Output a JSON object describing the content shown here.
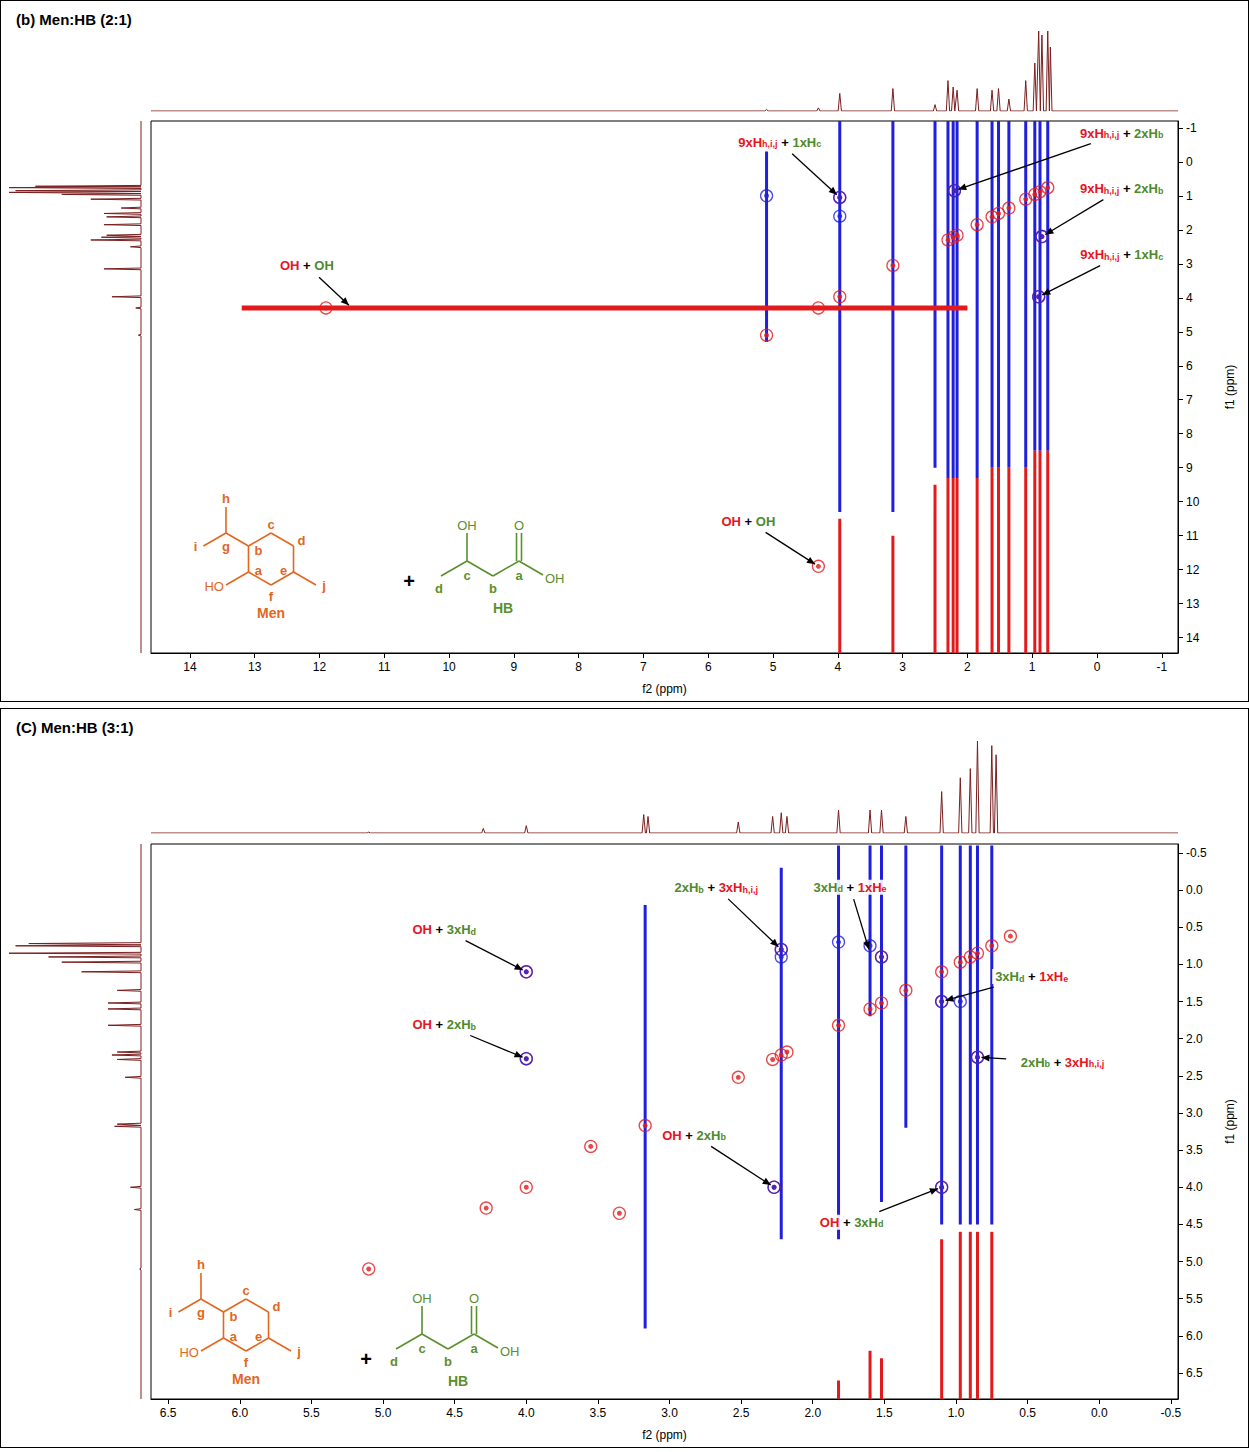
{
  "chart_data": [
    {
      "type": "scatter",
      "title": "(b) Men:HB (2:1)",
      "x_label": "f2 (ppm)",
      "y_label": "f1 (ppm)",
      "xlim": [
        14.6,
        -1.25
      ],
      "ylim": [
        14.45,
        -1.2
      ],
      "xticks": [
        14,
        13,
        12,
        11,
        10,
        9,
        8,
        7,
        6,
        5,
        4,
        3,
        2,
        1,
        0,
        -1
      ],
      "yticks": [
        -1,
        0,
        1,
        2,
        3,
        4,
        5,
        6,
        7,
        8,
        9,
        10,
        11,
        12,
        13,
        14
      ],
      "grid": false,
      "projection": {
        "color": "#7a1f1f",
        "ppm": [
          5.1,
          4.3,
          3.97,
          3.15,
          2.5,
          2.3,
          2.22,
          2.16,
          1.85,
          1.62,
          1.52,
          1.36,
          1.1,
          0.96,
          0.9,
          0.85,
          0.76,
          0.72
        ],
        "intensity": [
          2,
          4,
          22,
          28,
          8,
          38,
          30,
          26,
          28,
          26,
          28,
          15,
          38,
          60,
          100,
          95,
          100,
          80
        ]
      },
      "series": [
        {
          "color": "#e31a1c",
          "x": [
            5.1,
            3.97,
            3.15,
            2.3,
            2.22,
            2.16,
            1.85,
            1.62,
            1.52,
            1.36,
            1.1,
            0.96,
            0.88,
            0.76,
            4.3,
            11.9,
            4.3,
            3.97,
            2.2,
            0.85,
            0.9
          ],
          "y": [
            5.1,
            3.97,
            3.05,
            2.3,
            2.22,
            2.16,
            1.85,
            1.62,
            1.52,
            1.36,
            1.1,
            0.96,
            0.88,
            0.76,
            4.3,
            4.3,
            11.9,
            1.05,
            0.85,
            2.2,
            3.97
          ]
        },
        {
          "color": "#1f1fdd",
          "x": [
            5.1,
            3.97,
            3.97,
            2.2,
            0.85,
            0.9
          ],
          "y": [
            1.0,
            1.05,
            1.6,
            0.85,
            2.2,
            3.97
          ]
        }
      ],
      "streaks": [
        {
          "color": "#1f1fdd",
          "x": [
            5.1,
            3.97,
            3.15,
            2.5,
            2.3,
            2.22,
            2.16,
            1.85,
            1.62,
            1.52,
            1.36,
            1.1,
            0.96,
            0.88,
            0.76
          ],
          "y_from": [
            -0.3,
            -1.2,
            -1.2,
            -1.2,
            -1.2,
            -1.2,
            -1.2,
            -1.2,
            -1.2,
            -1.2,
            -1.2,
            -1.2,
            -1.2,
            -1.2,
            -1.2
          ],
          "y_to": [
            5.3,
            10.3,
            10.3,
            9.0,
            9.3,
            9.3,
            9.3,
            9.3,
            9.0,
            9.0,
            9.0,
            9.0,
            8.5,
            8.5,
            8.5
          ]
        },
        {
          "color": "#e31a1c",
          "x": [
            3.97,
            3.15,
            2.5,
            2.3,
            2.22,
            2.16,
            1.85,
            1.62,
            1.52,
            1.36,
            1.1,
            0.96,
            0.88,
            0.76
          ],
          "y_from": [
            10.5,
            11.0,
            9.5,
            9.3,
            9.3,
            9.3,
            9.3,
            9.0,
            9.0,
            9.0,
            9.0,
            8.5,
            8.5,
            8.5
          ],
          "y_to": [
            14.45,
            14.45,
            14.45,
            14.45,
            14.45,
            14.45,
            14.45,
            14.45,
            14.45,
            14.45,
            14.45,
            14.45,
            14.45,
            14.45
          ]
        }
      ],
      "ridges": [
        {
          "color": "#e31a1c",
          "y": [
            4.3
          ],
          "x_from": [
            13.2
          ],
          "x_to": [
            2.0
          ]
        }
      ],
      "annotations": [
        {
          "x": 3.97,
          "y": 1.05,
          "text": [
            {
              "text": "9xH",
              "sub": "h,i,j",
              "color": "#e8141e"
            },
            {
              "text": " + ",
              "color": "#000000"
            },
            {
              "text": "1xH",
              "sub": "c",
              "color": "#4f8a2b"
            }
          ]
        },
        {
          "x": 2.2,
          "y": 0.85,
          "text": [
            {
              "text": "9xH",
              "sub": "h,i,j",
              "color": "#e8141e"
            },
            {
              "text": " + ",
              "color": "#000000"
            },
            {
              "text": "2xH",
              "sub": "b",
              "color": "#4f8a2b"
            }
          ]
        },
        {
          "x": 0.85,
          "y": 2.2,
          "text": [
            {
              "text": "9xH",
              "sub": "h,i,j",
              "color": "#e8141e"
            },
            {
              "text": " + ",
              "color": "#000000"
            },
            {
              "text": "2xH",
              "sub": "b",
              "color": "#4f8a2b"
            }
          ]
        },
        {
          "x": 0.9,
          "y": 3.97,
          "text": [
            {
              "text": "9xH",
              "sub": "h,i,j",
              "color": "#e8141e"
            },
            {
              "text": " + ",
              "color": "#000000"
            },
            {
              "text": "1xH",
              "sub": "c",
              "color": "#4f8a2b"
            }
          ]
        },
        {
          "x": 11.5,
          "y": 4.3,
          "text": [
            {
              "text": "OH",
              "color": "#e8141e"
            },
            {
              "text": " + ",
              "color": "#000000"
            },
            {
              "text": "OH",
              "color": "#4f8a2b"
            }
          ]
        },
        {
          "x": 4.3,
          "y": 11.9,
          "text": [
            {
              "text": "OH",
              "color": "#e8141e"
            },
            {
              "text": " + ",
              "color": "#000000"
            },
            {
              "text": "OH",
              "color": "#4f8a2b"
            }
          ]
        }
      ],
      "molecules": [
        {
          "name": "Men",
          "color": "#e2661e",
          "atom_labels": [
            "h",
            "i",
            "g",
            "b",
            "c",
            "d",
            "e",
            "j",
            "f",
            "a"
          ],
          "groups": [
            "HO"
          ]
        },
        {
          "name": "HB",
          "color": "#5a8f2e",
          "atom_labels": [
            "d",
            "c",
            "b",
            "a"
          ],
          "groups": [
            "OH",
            "O",
            "OH"
          ]
        }
      ],
      "joiner": "+"
    },
    {
      "type": "scatter",
      "title": "(C) Men:HB (3:1)",
      "x_label": "f2 (ppm)",
      "y_label": "f1 (ppm)",
      "xlim": [
        6.62,
        -0.55
      ],
      "ylim": [
        6.85,
        -0.62
      ],
      "xticks": [
        6.5,
        {
          "value": 6,
          "label": "6.0"
        },
        5.5,
        {
          "value": 5,
          "label": "5.0"
        },
        4.5,
        {
          "value": 4,
          "label": "4.0"
        },
        3.5,
        {
          "value": 3,
          "label": "3.0"
        },
        2.5,
        {
          "value": 2,
          "label": "2.0"
        },
        1.5,
        {
          "value": 1,
          "label": "1.0"
        },
        0.5,
        {
          "value": 0,
          "label": "0.0"
        },
        -0.5
      ],
      "yticks": [
        -0.5,
        {
          "value": 0,
          "label": "0.0"
        },
        0.5,
        {
          "value": 1,
          "label": "1.0"
        },
        1.5,
        {
          "value": 2,
          "label": "2.0"
        },
        2.5,
        {
          "value": 3,
          "label": "3.0"
        },
        3.5,
        {
          "value": 4,
          "label": "4.0"
        },
        4.5,
        {
          "value": 5,
          "label": "5.0"
        },
        5.5,
        {
          "value": 6,
          "label": "6.0"
        },
        6.5
      ],
      "grid": false,
      "projection": {
        "color": "#7a1f1f",
        "ppm": [
          5.1,
          4.3,
          4.0,
          3.18,
          3.15,
          2.52,
          2.28,
          2.22,
          2.18,
          1.82,
          1.6,
          1.52,
          1.35,
          1.1,
          0.97,
          0.9,
          0.85,
          0.75,
          0.72
        ],
        "intensity": [
          1,
          5,
          8,
          20,
          18,
          12,
          18,
          22,
          18,
          25,
          25,
          25,
          18,
          45,
          60,
          70,
          100,
          95,
          85
        ]
      },
      "series": [
        {
          "color": "#e31a1c",
          "x": [
            5.1,
            4.28,
            4.0,
            3.17,
            2.52,
            2.28,
            2.22,
            2.18,
            1.82,
            1.6,
            1.52,
            1.35,
            1.1,
            0.97,
            0.9,
            0.85,
            0.75,
            0.62,
            3.55,
            3.35,
            4.0,
            4.0,
            2.27,
            1.1,
            2.22,
            1.52,
            1.1,
            0.85
          ],
          "y": [
            5.1,
            4.28,
            4.0,
            3.17,
            2.52,
            2.28,
            2.22,
            2.18,
            1.82,
            1.6,
            1.52,
            1.35,
            1.1,
            0.97,
            0.9,
            0.85,
            0.75,
            0.62,
            3.45,
            4.35,
            1.1,
            2.27,
            4.0,
            4.0,
            0.8,
            0.9,
            1.5,
            2.25
          ]
        },
        {
          "color": "#1f1fdd",
          "x": [
            4.0,
            4.0,
            2.27,
            1.1,
            2.22,
            2.22,
            1.6,
            1.52,
            1.1,
            0.85,
            0.97,
            1.82
          ],
          "y": [
            1.1,
            2.27,
            4.0,
            4.0,
            0.8,
            0.9,
            0.75,
            0.9,
            1.5,
            2.25,
            1.5,
            0.7
          ]
        }
      ],
      "streaks": [
        {
          "color": "#1f1fdd",
          "x": [
            3.17,
            2.22,
            1.82,
            1.6,
            1.52,
            1.35,
            1.1,
            0.97,
            0.9,
            0.85,
            0.75
          ],
          "y_from": [
            0.2,
            -0.3,
            -0.6,
            -0.6,
            -0.6,
            -0.6,
            -0.6,
            -0.6,
            -0.6,
            -0.6,
            -0.6
          ],
          "y_to": [
            5.9,
            4.7,
            4.7,
            1.7,
            4.2,
            3.2,
            4.5,
            4.5,
            4.5,
            4.5,
            4.5
          ]
        },
        {
          "color": "#e31a1c",
          "x": [
            1.82,
            1.6,
            1.52,
            1.1,
            0.97,
            0.9,
            0.85,
            0.75
          ],
          "y_from": [
            6.6,
            6.2,
            6.3,
            4.7,
            4.6,
            4.6,
            4.6,
            4.6
          ],
          "y_to": [
            6.85,
            6.85,
            6.85,
            6.85,
            6.85,
            6.85,
            6.85,
            6.85
          ]
        }
      ],
      "annotations": [
        {
          "x": 4.0,
          "y": 1.1,
          "text": [
            {
              "text": "OH",
              "color": "#e8141e"
            },
            {
              "text": " + ",
              "color": "#000000"
            },
            {
              "text": "3xH",
              "sub": "d",
              "color": "#4f8a2b"
            }
          ]
        },
        {
          "x": 4.0,
          "y": 2.27,
          "text": [
            {
              "text": "OH",
              "color": "#e8141e"
            },
            {
              "text": " + ",
              "color": "#000000"
            },
            {
              "text": "2xH",
              "sub": "b",
              "color": "#4f8a2b"
            }
          ]
        },
        {
          "x": 2.22,
          "y": 0.8,
          "text": [
            {
              "text": "2xH",
              "sub": "b",
              "color": "#4f8a2b"
            },
            {
              "text": " + ",
              "color": "#000000"
            },
            {
              "text": "3xH",
              "sub": "h,i,j",
              "color": "#e8141e"
            }
          ]
        },
        {
          "x": 1.6,
          "y": 0.85,
          "text": [
            {
              "text": "3xH",
              "sub": "d",
              "color": "#4f8a2b"
            },
            {
              "text": " + ",
              "color": "#000000"
            },
            {
              "text": "1xH",
              "sub": "e",
              "color": "#e8141e"
            }
          ]
        },
        {
          "x": 1.1,
          "y": 1.5,
          "text": [
            {
              "text": "3xH",
              "sub": "d",
              "color": "#4f8a2b"
            },
            {
              "text": " + ",
              "color": "#000000"
            },
            {
              "text": "1xH",
              "sub": "e",
              "color": "#e8141e"
            }
          ]
        },
        {
          "x": 0.85,
          "y": 2.25,
          "text": [
            {
              "text": "2xH",
              "sub": "b",
              "color": "#4f8a2b"
            },
            {
              "text": " + ",
              "color": "#000000"
            },
            {
              "text": "3xH",
              "sub": "h,i,j",
              "color": "#e8141e"
            }
          ]
        },
        {
          "x": 2.27,
          "y": 4.0,
          "text": [
            {
              "text": "OH",
              "color": "#e8141e"
            },
            {
              "text": " + ",
              "color": "#000000"
            },
            {
              "text": "2xH",
              "sub": "b",
              "color": "#4f8a2b"
            }
          ]
        },
        {
          "x": 1.1,
          "y": 4.0,
          "text": [
            {
              "text": "OH",
              "color": "#e8141e"
            },
            {
              "text": " + ",
              "color": "#000000"
            },
            {
              "text": "3xH",
              "sub": "d",
              "color": "#4f8a2b"
            }
          ]
        }
      ],
      "molecules": [
        {
          "name": "Men",
          "color": "#e2661e",
          "atom_labels": [
            "h",
            "i",
            "g",
            "b",
            "c",
            "d",
            "e",
            "j",
            "f",
            "a"
          ],
          "groups": [
            "HO"
          ]
        },
        {
          "name": "HB",
          "color": "#5a8f2e",
          "atom_labels": [
            "d",
            "c",
            "b",
            "a"
          ],
          "groups": [
            "OH",
            "O",
            "OH"
          ]
        }
      ],
      "joiner": "+"
    }
  ]
}
